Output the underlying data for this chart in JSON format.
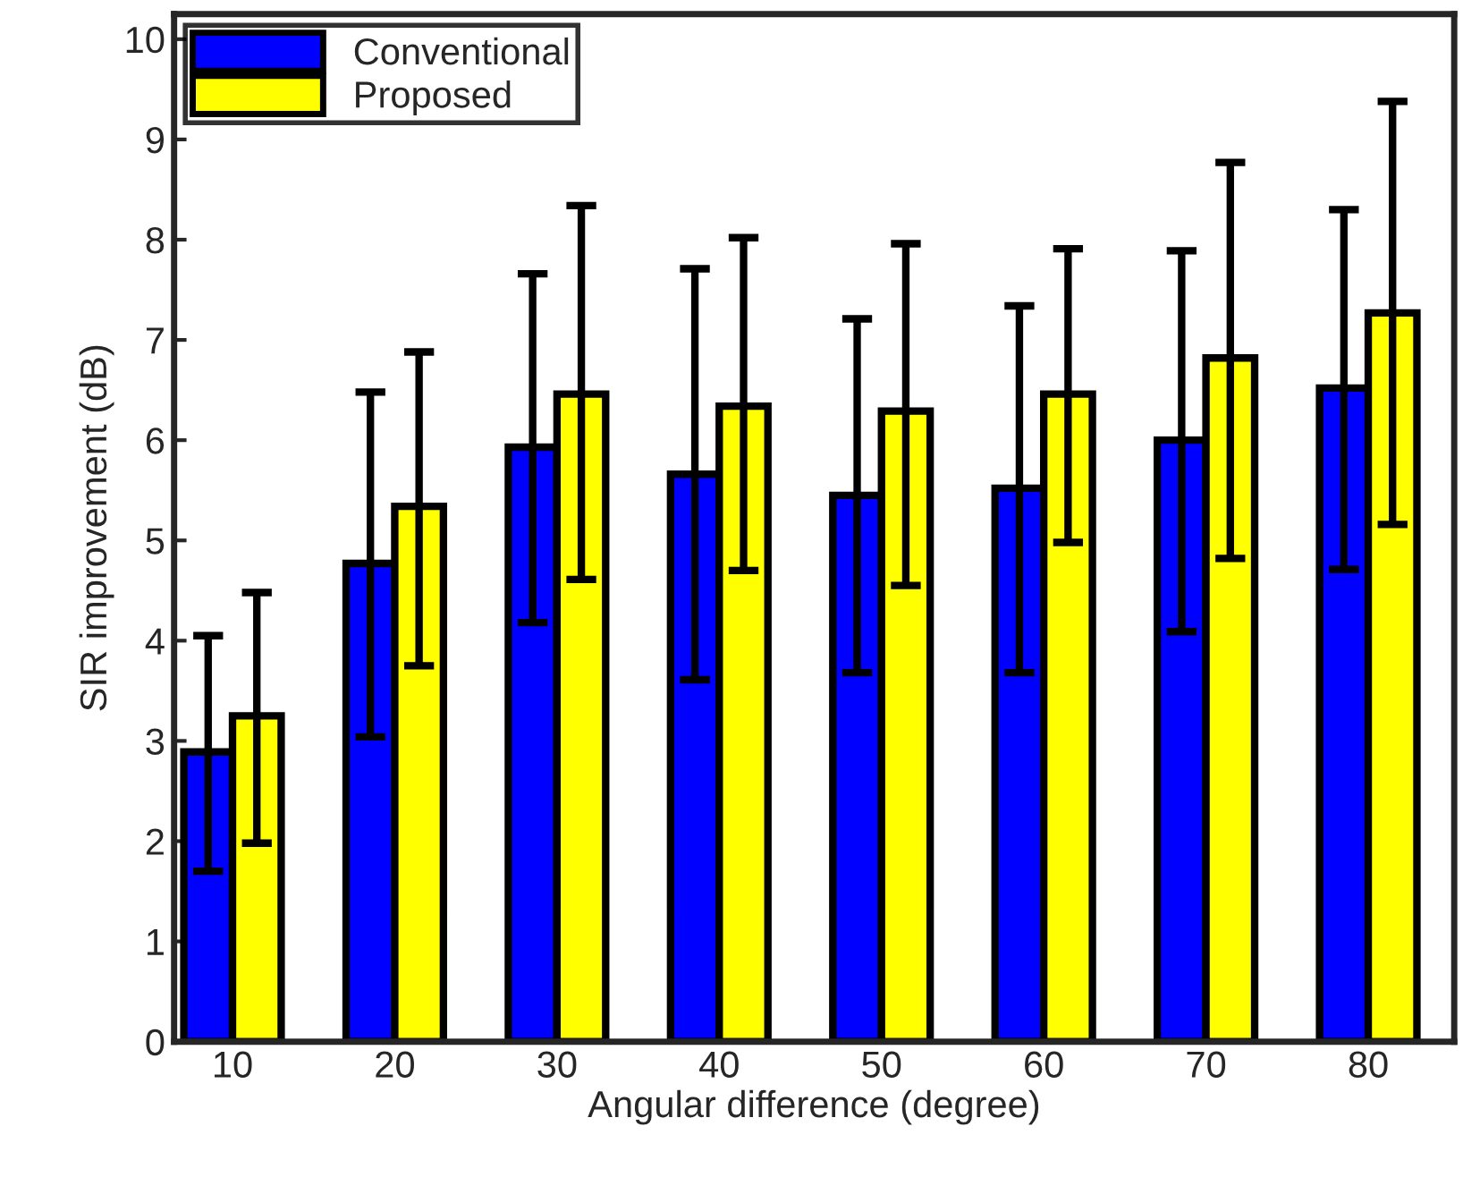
{
  "chart_data": {
    "type": "bar",
    "xlabel": "Angular difference (degree)",
    "ylabel": "SIR improvement (dB)",
    "categories": [
      "10",
      "20",
      "30",
      "40",
      "50",
      "60",
      "70",
      "80"
    ],
    "series": [
      {
        "name": "Conventional",
        "color": "#0000ff",
        "values": [
          2.89,
          4.77,
          5.93,
          5.66,
          5.45,
          5.52,
          6.0,
          6.52
        ],
        "errors": [
          [
            1.7,
            4.05
          ],
          [
            3.04,
            6.48
          ],
          [
            4.18,
            7.66
          ],
          [
            3.61,
            7.71
          ],
          [
            3.68,
            7.21
          ],
          [
            3.68,
            7.34
          ],
          [
            4.09,
            7.89
          ],
          [
            4.71,
            8.3
          ]
        ]
      },
      {
        "name": "Proposed",
        "color": "#ffff00",
        "values": [
          3.25,
          5.34,
          6.46,
          6.34,
          6.29,
          6.46,
          6.82,
          7.27
        ],
        "errors": [
          [
            1.98,
            4.48
          ],
          [
            3.75,
            6.88
          ],
          [
            4.61,
            8.34
          ],
          [
            4.7,
            8.02
          ],
          [
            4.55,
            7.96
          ],
          [
            4.98,
            7.91
          ],
          [
            4.82,
            8.77
          ],
          [
            5.16,
            9.38
          ]
        ]
      }
    ],
    "ylim": [
      0,
      10.25
    ],
    "yticks": [
      0,
      1,
      2,
      3,
      4,
      5,
      6,
      7,
      8,
      9,
      10
    ],
    "grid": false,
    "legend": "top left"
  }
}
